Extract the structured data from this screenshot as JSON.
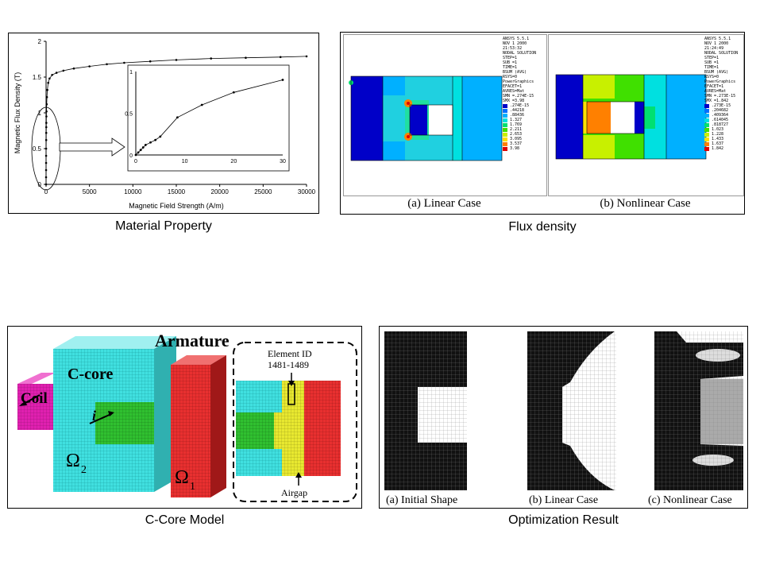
{
  "captions": {
    "material": "Material Property",
    "flux": "Flux density",
    "ccore": "C-Core Model",
    "opt": "Optimization Result"
  },
  "chart_data": {
    "type": "line",
    "xlabel": "Magnetic Field Strength (A/m)",
    "ylabel": "Magnetic Flux Density (T)",
    "xlim": [
      0,
      30000
    ],
    "ylim": [
      0,
      2
    ],
    "xticks": [
      "0",
      "5000",
      "10000",
      "15000",
      "20000",
      "25000",
      "30000"
    ],
    "yticks": [
      "0",
      "0.5",
      "1",
      "1.5",
      "2"
    ],
    "x": [
      0,
      2,
      4,
      6,
      8,
      10,
      15,
      20,
      25,
      30,
      40,
      50,
      70,
      100,
      150,
      250,
      400,
      700,
      1200,
      2000,
      3200,
      5000,
      7000,
      9000,
      12000,
      15000,
      19000,
      23000,
      27000,
      30000
    ],
    "values": [
      0,
      0.1,
      0.2,
      0.3,
      0.4,
      0.5,
      0.62,
      0.72,
      0.8,
      0.86,
      0.95,
      1.02,
      1.12,
      1.22,
      1.32,
      1.42,
      1.48,
      1.53,
      1.56,
      1.59,
      1.62,
      1.65,
      1.68,
      1.7,
      1.72,
      1.74,
      1.76,
      1.77,
      1.78,
      1.79
    ],
    "inset": {
      "xlim": [
        0,
        30
      ],
      "ylim": [
        0,
        1
      ],
      "xticks": [
        "0",
        "10",
        "20",
        "30"
      ],
      "yticks": [
        "0",
        "0.5",
        "1"
      ],
      "x": [
        0,
        0.5,
        1,
        1.5,
        2,
        3,
        4,
        5,
        8.5,
        13.5,
        20,
        30
      ],
      "values": [
        0,
        0.03,
        0.06,
        0.09,
        0.12,
        0.15,
        0.18,
        0.22,
        0.45,
        0.6,
        0.75,
        0.9
      ]
    }
  },
  "flux": {
    "label_a": "(a) Linear Case",
    "label_b": "(b) Nonlinear Case",
    "legend_a": {
      "header": [
        "ANSYS 5.5.1",
        "NOV  1 2000",
        "21:53:32",
        "NODAL SOLUTION",
        "STEP=1",
        "SUB =1",
        "TIME=1",
        "BSUM     (AVG)",
        "RSYS=0",
        "PowerGraphics",
        "EFACET=1",
        "AVRES=Mat",
        "SMN =.274E-15",
        "SMX =3.98"
      ],
      "values": [
        ".274E-15",
        ".44218",
        ".88436",
        "1.327",
        "1.769",
        "2.211",
        "2.653",
        "3.095",
        "3.537",
        "3.98"
      ]
    },
    "legend_b": {
      "header": [
        "ANSYS 5.5.1",
        "NOV  1 2000",
        "21:24:49",
        "NODAL SOLUTION",
        "STEP=1",
        "SUB =1",
        "TIME=1",
        "BSUM     (AVG)",
        "RSYS=0",
        "PowerGraphics",
        "EFACET=1",
        "AVRES=Mat",
        "SMN =.273E-15",
        "SMX =1.842"
      ],
      "values": [
        ".273E-15",
        ".204682",
        ".409364",
        ".614045",
        ".818727",
        "1.023",
        "1.228",
        "1.433",
        "1.637",
        "1.842"
      ]
    },
    "legend_colors": [
      "#0000c8",
      "#0070ff",
      "#00b0ff",
      "#00e0e0",
      "#00e070",
      "#40e000",
      "#c8f000",
      "#ffe000",
      "#ff8000",
      "#e00000"
    ]
  },
  "ccore": {
    "armature": "Armature",
    "ccore_label": "C-core",
    "coil": "Coil",
    "current": "i",
    "omega2": "Ω",
    "omega2_sub": "2",
    "omega1": "Ω",
    "omega1_sub": "1",
    "element_id": "Element ID",
    "element_range": "1481-1489",
    "airgap": "Airgap",
    "colors": {
      "core": "#40e0e0",
      "armature": "#e83030",
      "coil": "#e020b0",
      "green": "#30c030",
      "airgap": "#e8e830"
    }
  },
  "opt": {
    "label_a": "(a) Initial Shape",
    "label_b": "(b) Linear Case",
    "label_c": "(c) Nonlinear Case"
  }
}
